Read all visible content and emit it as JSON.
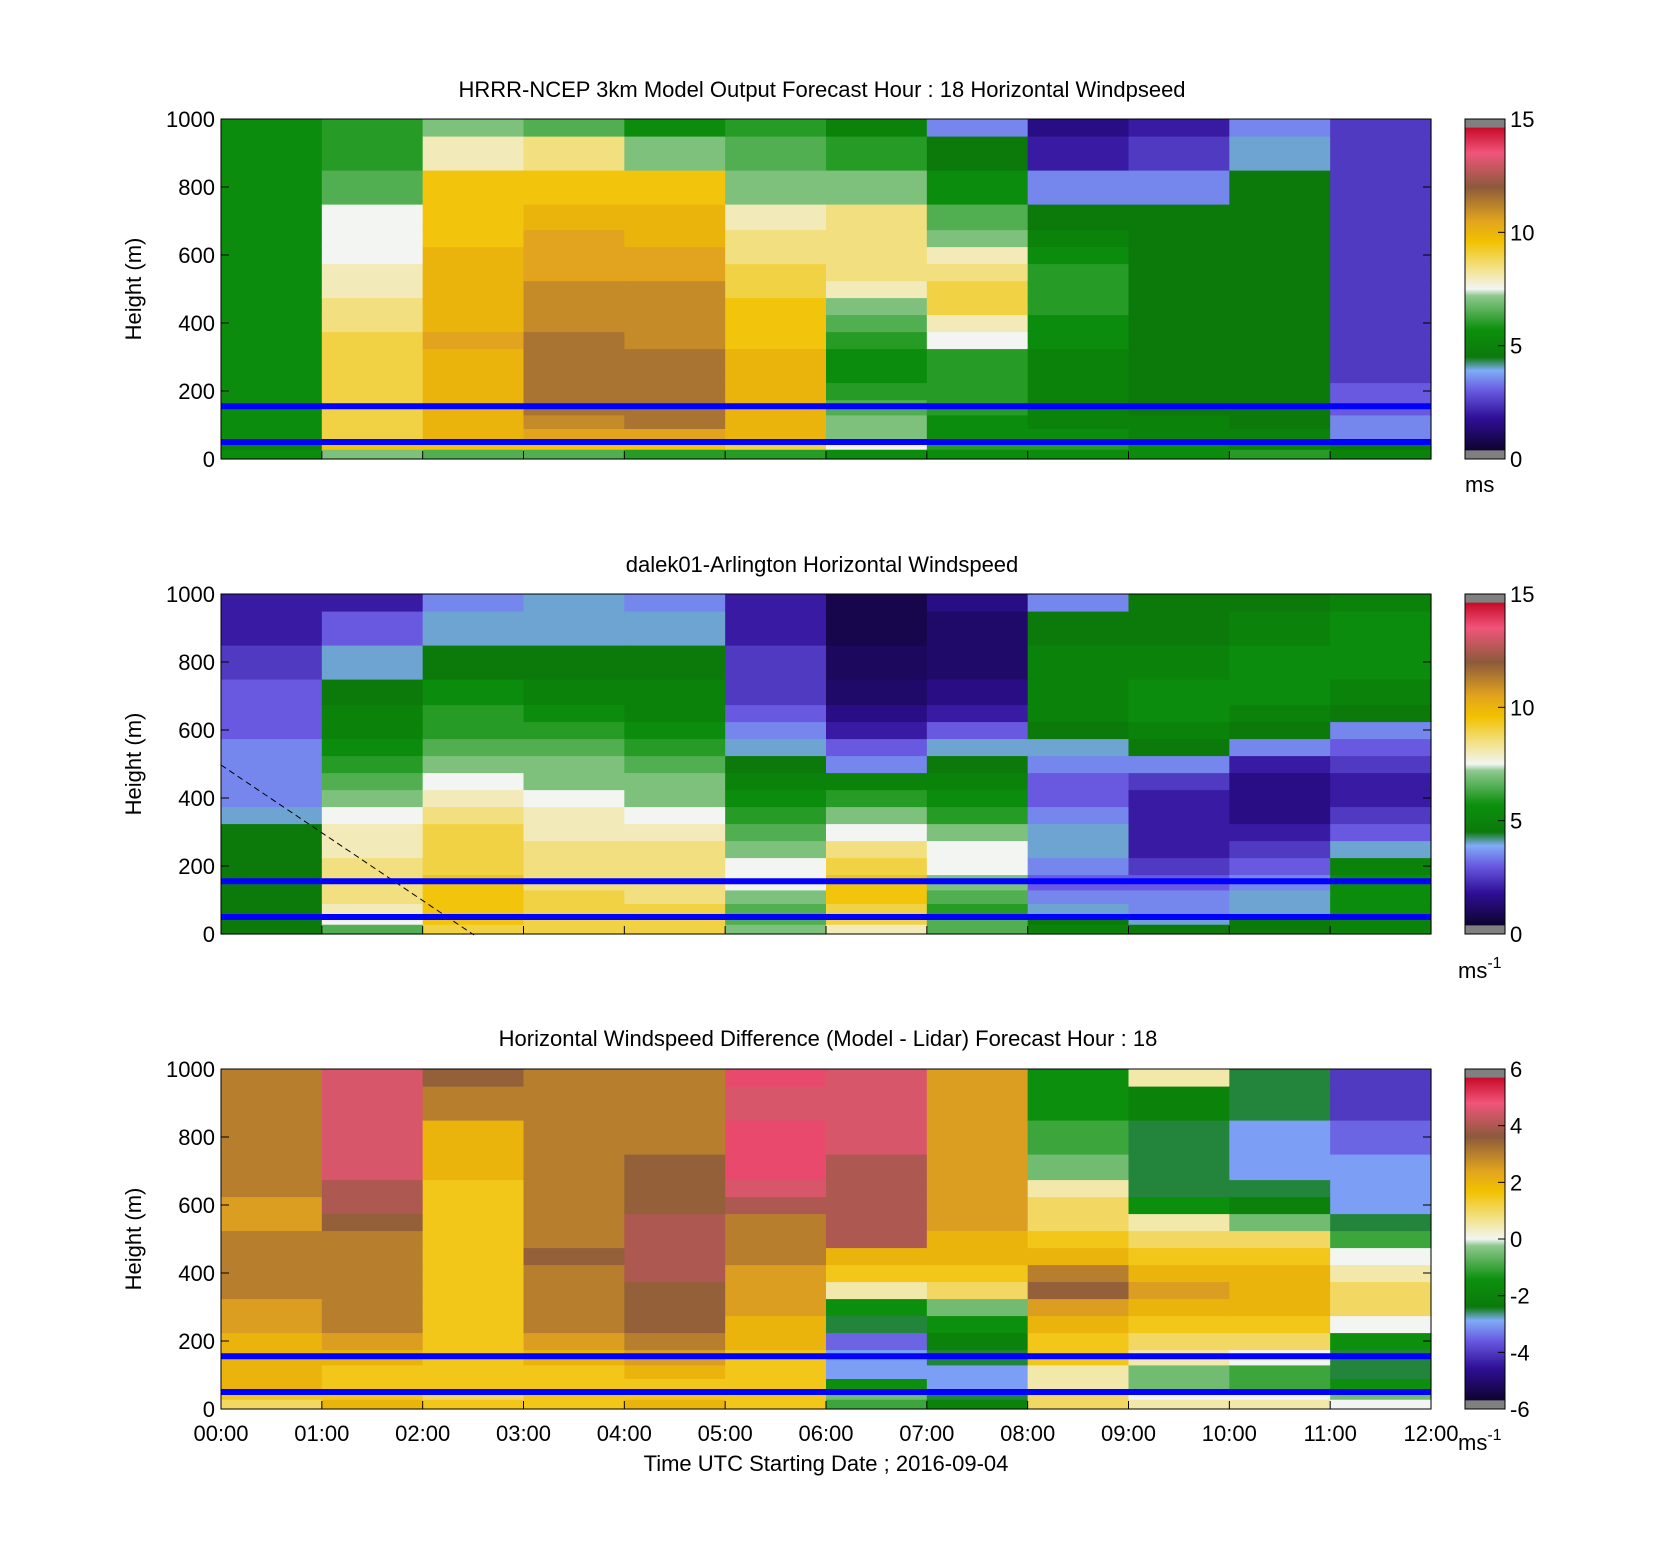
{
  "figure": {
    "x_axis_title": "Time UTC  Starting Date ; 2016-09-04",
    "x_tick_labels": [
      "00:00",
      "01:00",
      "02:00",
      "03:00",
      "04:00",
      "05:00",
      "06:00",
      "07:00",
      "08:00",
      "09:00",
      "10:00",
      "11:00",
      "12:00"
    ]
  },
  "chart_data": [
    {
      "type": "heatmap",
      "title": "HRRR-NCEP 3km Model Output   Forecast Hour : 18 Horizontal Windpseed",
      "ylabel": "Height (m)",
      "xlabel": "",
      "x_hours": [
        0,
        1,
        2,
        3,
        4,
        5,
        6,
        7,
        8,
        9,
        10,
        11
      ],
      "heights_m": [
        18,
        40,
        70,
        110,
        150,
        200,
        250,
        300,
        350,
        400,
        450,
        500,
        550,
        600,
        650,
        700,
        800,
        900,
        1000
      ],
      "ylim": [
        0,
        1000
      ],
      "y_ticks": [
        0,
        200,
        400,
        600,
        800,
        1000
      ],
      "colorbar": {
        "min": 0,
        "max": 15,
        "ticks": [
          0,
          5,
          10,
          15
        ],
        "unit_label": "ms",
        "unit_sup": ""
      },
      "reference_lines_m": [
        50,
        155
      ],
      "values": [
        [
          5.5,
          5.0,
          5.5,
          5.5,
          5.5,
          5.5,
          5.5,
          5.5,
          5.5,
          5.5,
          5.5,
          5.5,
          5.5,
          5.5,
          5.5,
          5.5,
          5.5,
          5.5,
          5.5
        ],
        [
          7.0,
          9.5,
          9.0,
          9.0,
          9.0,
          9.0,
          9.0,
          9.0,
          9.0,
          8.5,
          8.5,
          8.0,
          8.0,
          7.5,
          7.5,
          7.5,
          6.5,
          6.0,
          6.0
        ],
        [
          6.5,
          9.5,
          10.0,
          10.0,
          10.0,
          10.0,
          10.0,
          10.0,
          10.5,
          10.0,
          10.0,
          10.0,
          10.0,
          10.0,
          9.5,
          9.5,
          9.5,
          8.0,
          7.0
        ],
        [
          6.5,
          9.5,
          10.5,
          11.0,
          11.5,
          11.5,
          11.5,
          11.5,
          11.5,
          11.0,
          11.0,
          11.0,
          10.5,
          10.5,
          10.5,
          10.0,
          9.5,
          8.5,
          6.5
        ],
        [
          6.0,
          9.5,
          10.5,
          11.5,
          11.5,
          11.5,
          11.5,
          11.5,
          11.0,
          11.0,
          11.0,
          11.0,
          10.5,
          10.5,
          10.0,
          10.0,
          9.5,
          7.0,
          5.5
        ],
        [
          6.0,
          9.0,
          10.0,
          10.0,
          10.0,
          10.0,
          10.0,
          10.0,
          9.5,
          9.5,
          9.5,
          9.0,
          9.0,
          8.5,
          8.5,
          8.0,
          7.0,
          6.5,
          6.0
        ],
        [
          5.5,
          7.5,
          7.0,
          7.0,
          6.5,
          6.0,
          5.5,
          5.5,
          6.0,
          6.5,
          7.0,
          8.0,
          8.5,
          8.5,
          8.5,
          8.5,
          7.0,
          6.0,
          5.0
        ],
        [
          5.5,
          6.0,
          5.5,
          5.5,
          6.0,
          6.0,
          6.0,
          6.0,
          7.5,
          8.0,
          9.0,
          9.0,
          8.5,
          8.0,
          7.0,
          6.5,
          5.5,
          4.5,
          3.5
        ],
        [
          5.5,
          6.0,
          5.5,
          5.0,
          5.0,
          5.0,
          5.0,
          5.0,
          5.5,
          5.5,
          6.0,
          6.0,
          6.0,
          5.5,
          5.0,
          4.5,
          3.5,
          2.0,
          1.5
        ],
        [
          5.5,
          5.5,
          5.0,
          5.0,
          4.5,
          4.5,
          4.5,
          4.5,
          4.5,
          4.5,
          4.5,
          4.5,
          4.5,
          4.5,
          4.5,
          4.5,
          3.5,
          2.5,
          2.0
        ],
        [
          6.0,
          5.0,
          5.0,
          4.5,
          4.5,
          4.5,
          4.5,
          4.5,
          4.5,
          4.5,
          4.5,
          4.5,
          4.5,
          4.5,
          4.5,
          4.5,
          4.5,
          4.0,
          3.5
        ],
        [
          5.0,
          4.5,
          3.5,
          3.5,
          3.0,
          3.0,
          2.5,
          2.5,
          2.5,
          2.5,
          2.5,
          2.5,
          2.5,
          2.5,
          2.5,
          2.5,
          2.5,
          2.5,
          2.5
        ]
      ]
    },
    {
      "type": "heatmap",
      "title": "dalek01-Arlington  Horizontal Windspeed",
      "ylabel": "Height (m)",
      "xlabel": "",
      "x_hours": [
        0,
        1,
        2,
        3,
        4,
        5,
        6,
        7,
        8,
        9,
        10,
        11
      ],
      "heights_m": [
        18,
        40,
        70,
        110,
        150,
        200,
        250,
        300,
        350,
        400,
        450,
        500,
        550,
        600,
        650,
        700,
        800,
        900,
        1000
      ],
      "ylim": [
        0,
        1000
      ],
      "y_ticks": [
        0,
        200,
        400,
        600,
        800,
        1000
      ],
      "colorbar": {
        "min": 0,
        "max": 15,
        "ticks": [
          0,
          5,
          10,
          15
        ],
        "unit_label": "ms",
        "unit_sup": "-1"
      },
      "reference_lines_m": [
        50,
        155
      ],
      "values": [
        [
          4.5,
          4.5,
          4.5,
          4.5,
          4.5,
          4.5,
          4.5,
          4.5,
          4.0,
          3.5,
          3.5,
          3.5,
          3.5,
          3.0,
          3.0,
          3.0,
          2.5,
          2.0,
          2.0
        ],
        [
          6.5,
          7.5,
          8.0,
          8.5,
          8.5,
          8.5,
          8.0,
          8.0,
          7.5,
          7.0,
          6.5,
          6.0,
          5.5,
          5.0,
          5.0,
          4.5,
          4.0,
          3.0,
          2.0
        ],
        [
          9.0,
          9.5,
          9.5,
          9.5,
          9.5,
          9.0,
          9.0,
          9.0,
          8.5,
          8.0,
          7.5,
          7.0,
          6.5,
          6.0,
          6.0,
          5.5,
          4.5,
          4.0,
          3.5
        ],
        [
          9.0,
          9.0,
          9.0,
          9.0,
          8.5,
          8.5,
          8.5,
          8.0,
          8.0,
          7.5,
          7.0,
          7.0,
          6.5,
          6.0,
          5.5,
          5.0,
          4.5,
          4.0,
          4.0
        ],
        [
          9.0,
          9.0,
          9.0,
          8.5,
          8.5,
          8.5,
          8.5,
          8.0,
          7.5,
          7.0,
          7.0,
          6.5,
          6.0,
          5.5,
          5.0,
          5.0,
          4.5,
          4.0,
          3.5
        ],
        [
          7.0,
          6.5,
          6.5,
          7.0,
          7.5,
          7.5,
          7.0,
          6.5,
          6.0,
          5.5,
          5.0,
          4.5,
          4.0,
          3.5,
          3.0,
          2.5,
          2.5,
          2.0,
          2.0
        ],
        [
          8.0,
          9.0,
          9.0,
          9.5,
          9.5,
          9.0,
          8.5,
          7.5,
          7.0,
          6.0,
          5.0,
          3.5,
          3.0,
          2.0,
          1.5,
          1.0,
          0.8,
          0.5,
          0.5
        ],
        [
          6.5,
          6.5,
          6.0,
          6.5,
          7.0,
          7.5,
          7.5,
          7.0,
          6.0,
          5.5,
          5.0,
          4.5,
          4.0,
          3.0,
          2.0,
          1.5,
          1.0,
          1.0,
          1.5
        ],
        [
          5.0,
          4.5,
          4.0,
          3.5,
          3.0,
          3.5,
          4.0,
          4.0,
          3.5,
          3.0,
          3.0,
          3.5,
          4.0,
          4.5,
          5.0,
          5.0,
          5.0,
          4.5,
          3.5
        ],
        [
          4.5,
          4.0,
          3.5,
          3.5,
          3.0,
          2.5,
          2.0,
          2.0,
          2.0,
          2.0,
          2.5,
          3.5,
          4.5,
          5.0,
          5.5,
          5.5,
          5.0,
          4.5,
          4.5
        ],
        [
          4.5,
          4.5,
          4.0,
          4.0,
          3.5,
          3.0,
          2.5,
          2.0,
          1.5,
          1.5,
          1.5,
          2.0,
          3.5,
          4.5,
          5.0,
          5.5,
          5.5,
          5.0,
          4.5
        ],
        [
          5.0,
          5.0,
          5.5,
          5.5,
          5.5,
          5.0,
          4.0,
          3.0,
          2.5,
          2.0,
          2.0,
          2.5,
          3.0,
          3.5,
          4.5,
          5.0,
          5.5,
          5.5,
          5.0
        ]
      ]
    },
    {
      "type": "heatmap",
      "title": "Horizontal Windspeed Difference (Model - Lidar) Forecast Hour : 18",
      "ylabel": "Height (m)",
      "xlabel": "Time UTC  Starting Date ; 2016-09-04",
      "x_hours": [
        0,
        1,
        2,
        3,
        4,
        5,
        6,
        7,
        8,
        9,
        10,
        11
      ],
      "heights_m": [
        18,
        40,
        70,
        110,
        150,
        200,
        250,
        300,
        350,
        400,
        450,
        500,
        550,
        600,
        650,
        700,
        800,
        900,
        1000
      ],
      "ylim": [
        0,
        1000
      ],
      "y_ticks": [
        0,
        200,
        400,
        600,
        800,
        1000
      ],
      "colorbar": {
        "min": -6,
        "max": 6,
        "ticks": [
          -6,
          -4,
          -2,
          0,
          2,
          4,
          6
        ],
        "unit_label": "ms",
        "unit_sup": "-1"
      },
      "reference_lines_m": [
        50,
        155
      ],
      "values": [
        [
          1.0,
          1.5,
          2.0,
          2.0,
          2.0,
          2.0,
          2.5,
          2.5,
          3.0,
          3.0,
          3.0,
          3.0,
          2.5,
          2.5,
          3.0,
          3.0,
          3.0,
          3.0,
          3.0
        ],
        [
          2.0,
          1.5,
          1.5,
          1.5,
          2.0,
          2.5,
          3.0,
          3.0,
          3.0,
          3.0,
          3.0,
          3.0,
          3.5,
          4.0,
          4.0,
          4.5,
          4.5,
          4.5,
          4.5
        ],
        [
          1.5,
          1.0,
          1.5,
          1.5,
          1.5,
          1.5,
          1.5,
          1.5,
          1.5,
          1.5,
          1.5,
          1.5,
          1.5,
          1.5,
          1.5,
          2.0,
          2.0,
          3.0,
          3.5
        ],
        [
          1.5,
          1.5,
          1.5,
          1.5,
          2.0,
          2.5,
          3.0,
          3.0,
          3.0,
          3.0,
          3.5,
          3.0,
          3.0,
          3.0,
          3.0,
          3.0,
          3.0,
          3.0,
          3.0
        ],
        [
          2.0,
          1.5,
          1.5,
          2.0,
          2.5,
          3.0,
          3.5,
          3.5,
          3.5,
          4.0,
          4.0,
          4.0,
          4.0,
          3.5,
          3.5,
          3.5,
          3.0,
          3.0,
          3.0
        ],
        [
          1.5,
          1.5,
          1.5,
          1.5,
          1.5,
          2.0,
          2.0,
          2.5,
          2.5,
          2.5,
          3.0,
          3.0,
          3.0,
          4.0,
          4.5,
          5.0,
          5.0,
          4.5,
          5.0
        ],
        [
          -1.0,
          -0.5,
          -1.5,
          -3.0,
          -3.0,
          -3.5,
          -2.5,
          -1.5,
          0.5,
          1.5,
          2.0,
          4.0,
          4.0,
          4.0,
          4.0,
          4.0,
          4.5,
          4.5,
          4.5
        ],
        [
          -2.0,
          -2.5,
          -3.0,
          -3.0,
          -2.5,
          -2.0,
          -1.5,
          -0.5,
          1.0,
          1.5,
          2.0,
          2.0,
          2.5,
          2.5,
          2.5,
          2.5,
          2.5,
          2.5,
          2.5
        ],
        [
          1.0,
          1.0,
          0.5,
          0.5,
          1.5,
          1.5,
          2.0,
          2.5,
          3.5,
          3.0,
          2.0,
          1.5,
          1.0,
          1.0,
          0.5,
          -0.5,
          -1.0,
          -1.5,
          -1.5
        ],
        [
          0.5,
          0.0,
          -0.5,
          -0.5,
          0.5,
          1.0,
          1.5,
          2.0,
          2.5,
          2.0,
          1.5,
          1.0,
          0.5,
          -1.5,
          -2.5,
          -2.5,
          -2.5,
          -2.0,
          0.5
        ],
        [
          0.5,
          0.0,
          -1.0,
          -1.0,
          0.0,
          1.0,
          1.5,
          2.0,
          2.0,
          2.0,
          1.5,
          1.0,
          -0.5,
          -2.0,
          -2.5,
          -3.0,
          -3.0,
          -2.5,
          -2.5
        ],
        [
          0.0,
          -0.5,
          -1.5,
          -2.5,
          -2.5,
          -1.5,
          0.0,
          1.0,
          1.0,
          0.5,
          0.0,
          -1.0,
          -2.5,
          -3.0,
          -3.0,
          -3.0,
          -3.5,
          -4.0,
          -4.0
        ]
      ]
    }
  ]
}
